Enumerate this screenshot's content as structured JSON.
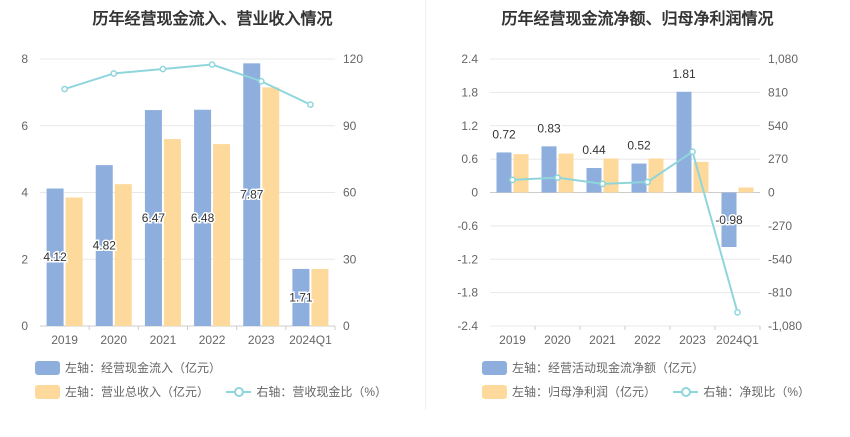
{
  "chart_data": [
    {
      "type": "bar",
      "title": "历年经营现金流入、营业收入情况",
      "categories": [
        "2019",
        "2020",
        "2021",
        "2022",
        "2023",
        "2024Q1"
      ],
      "y_left": {
        "ticks": [
          "0",
          "2",
          "4",
          "6",
          "8"
        ],
        "min": 0,
        "max": 8
      },
      "y_right": {
        "ticks": [
          "0",
          "30",
          "60",
          "90",
          "120"
        ],
        "min": 0,
        "max": 120
      },
      "series": [
        {
          "name": "左轴：经营现金流入（亿元）",
          "kind": "bar",
          "axis": "left",
          "color": "#8eaedd",
          "values": [
            4.12,
            4.82,
            6.47,
            6.48,
            7.87,
            1.71
          ],
          "labels": [
            "4.12",
            "4.82",
            "6.47",
            "6.48",
            "7.87",
            "1.71"
          ]
        },
        {
          "name": "左轴：营业总收入（亿元）",
          "kind": "bar",
          "axis": "left",
          "color": "#fdd99b",
          "values": [
            3.85,
            4.25,
            5.6,
            5.45,
            7.15,
            1.71
          ]
        },
        {
          "name": "右轴：营收现金比（%）",
          "kind": "line",
          "axis": "right",
          "color": "#8fd6dc",
          "values": [
            106.5,
            113.5,
            115.5,
            117.5,
            110.0,
            99.5
          ]
        }
      ],
      "legend_position": "bottom-left",
      "grid": true
    },
    {
      "type": "bar",
      "title": "历年经营现金流净额、归母净利润情况",
      "categories": [
        "2019",
        "2020",
        "2021",
        "2022",
        "2023",
        "2024Q1"
      ],
      "y_left": {
        "ticks": [
          "-2.4",
          "-1.8",
          "-1.2",
          "-0.6",
          "0",
          "0.6",
          "1.2",
          "1.8",
          "2.4"
        ],
        "min": -2.4,
        "max": 2.4
      },
      "y_right": {
        "ticks": [
          "-1,080",
          "-810",
          "-540",
          "-270",
          "0",
          "270",
          "540",
          "810",
          "1,080"
        ],
        "min": -1080,
        "max": 1080
      },
      "series": [
        {
          "name": "左轴：经营活动现金流净额（亿元）",
          "kind": "bar",
          "axis": "left",
          "color": "#8eaedd",
          "values": [
            0.72,
            0.83,
            0.44,
            0.52,
            1.81,
            -0.98
          ],
          "labels": [
            "0.72",
            "0.83",
            "0.44",
            "0.52",
            "1.81",
            "-0.98"
          ]
        },
        {
          "name": "左轴：归母净利润（亿元）",
          "kind": "bar",
          "axis": "left",
          "color": "#fdd99b",
          "values": [
            0.69,
            0.7,
            0.61,
            0.61,
            0.55,
            0.09
          ]
        },
        {
          "name": "右轴：净现比（%）",
          "kind": "line",
          "axis": "right",
          "color": "#8fd6dc",
          "values": [
            102,
            120,
            70,
            85,
            330,
            -970
          ]
        }
      ],
      "legend_position": "bottom-left",
      "grid": true
    }
  ]
}
